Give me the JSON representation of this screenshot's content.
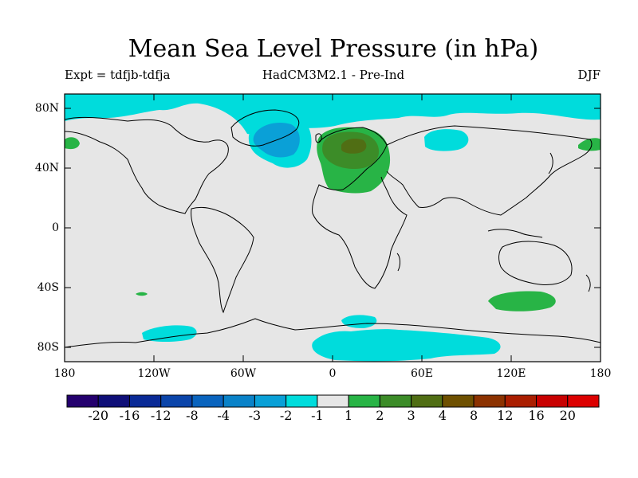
{
  "title": "Mean Sea Level Pressure (in hPa)",
  "subtitle_left": "Expt = tdfjb-tdfja",
  "subtitle_center": "HadCM3M2.1 - Pre-Ind",
  "subtitle_right": "DJF",
  "y_ticks": [
    "80N",
    "40N",
    "0",
    "40S",
    "80S"
  ],
  "x_ticks": [
    "180",
    "120W",
    "60W",
    "0",
    "60E",
    "120E",
    "180"
  ],
  "colorbar": {
    "labels": [
      "-20",
      "-16",
      "-12",
      "-8",
      "-4",
      "-3",
      "-2",
      "-1",
      "1",
      "2",
      "3",
      "4",
      "8",
      "12",
      "16",
      "20"
    ],
    "colors": [
      "#24006e",
      "#0f0f78",
      "#0a2a96",
      "#0b45aa",
      "#0a64be",
      "#0a82c8",
      "#0aa0d7",
      "#00dcdc",
      "#e6e6e6",
      "#28b446",
      "#3c8c28",
      "#506e14",
      "#6e5000",
      "#8c3200",
      "#aa1e00",
      "#c80000",
      "#dc0000"
    ]
  },
  "colors": {
    "background_field": "#e6e6e6",
    "negative_small": "#00dcdc",
    "negative_medium": "#0aa0d7",
    "positive_small": "#28b446",
    "positive_medium": "#3c8c28",
    "positive_large": "#506e14"
  }
}
